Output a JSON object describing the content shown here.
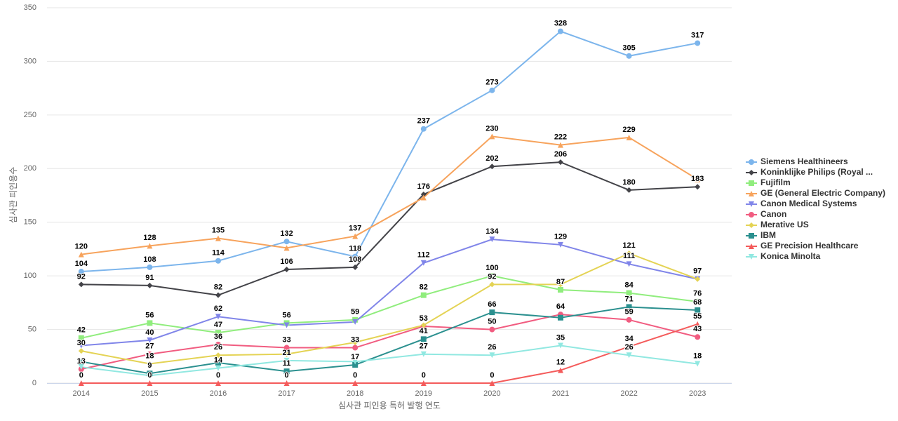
{
  "chart_data": {
    "type": "line",
    "x_label": "심사관 피인용 특허 발행 연도",
    "y_label": "심사관 피인용수",
    "categories": [
      "2014",
      "2015",
      "2016",
      "2017",
      "2018",
      "2019",
      "2020",
      "2021",
      "2022",
      "2023"
    ],
    "ylim": [
      0,
      350
    ],
    "yticks": [
      0,
      50,
      100,
      150,
      200,
      250,
      300,
      350
    ],
    "grid": true,
    "legend": "right",
    "series": [
      {
        "name": "Siemens Healthineers",
        "color": "#7cb5ec",
        "marker": "circle",
        "values": [
          104,
          108,
          114,
          132,
          118,
          237,
          273,
          328,
          305,
          317
        ],
        "value_labels": [
          "104",
          "108",
          "114",
          "132",
          "118",
          "237",
          "273",
          "328",
          "305",
          "317"
        ]
      },
      {
        "name": "Koninklijke Philips (Royal ...",
        "color": "#434348",
        "marker": "diamond",
        "values": [
          92,
          91,
          82,
          106,
          108,
          176,
          202,
          206,
          180,
          183
        ],
        "value_labels": [
          "92",
          "91",
          "82",
          "106",
          "108",
          "176",
          "202",
          "206",
          "180",
          "183"
        ]
      },
      {
        "name": "Fujifilm",
        "color": "#90ed7d",
        "marker": "square",
        "values": [
          42,
          56,
          47,
          56,
          59,
          82,
          100,
          87,
          84,
          76
        ],
        "value_labels": [
          "42",
          "56",
          "47",
          "56",
          "59",
          "82",
          "100",
          "87",
          "84",
          "76"
        ]
      },
      {
        "name": "GE (General Electric Company)",
        "color": "#f7a35c",
        "marker": "triangle",
        "values": [
          120,
          128,
          135,
          126,
          137,
          173,
          230,
          222,
          229,
          190
        ],
        "value_labels": [
          "120",
          "128",
          "135",
          null,
          "137",
          null,
          "230",
          "222",
          "229",
          null
        ]
      },
      {
        "name": "Canon Medical Systems",
        "color": "#8085e9",
        "marker": "triangle-down",
        "values": [
          35,
          40,
          62,
          54,
          57,
          112,
          134,
          129,
          111,
          97
        ],
        "value_labels": [
          null,
          "40",
          "62",
          null,
          null,
          "112",
          "134",
          "129",
          "111",
          null
        ]
      },
      {
        "name": "Canon",
        "color": "#f15c80",
        "marker": "circle",
        "values": [
          13,
          27,
          36,
          33,
          33,
          53,
          50,
          64,
          59,
          43
        ],
        "value_labels": [
          "13",
          "27",
          "36",
          "33",
          "33",
          "53",
          "50",
          "64",
          "59",
          "43"
        ]
      },
      {
        "name": "Merative US",
        "color": "#e4d354",
        "marker": "diamond",
        "values": [
          30,
          18,
          26,
          27,
          38,
          54,
          92,
          92,
          121,
          97
        ],
        "value_labels": [
          "30",
          "18",
          "26",
          null,
          null,
          null,
          "92",
          null,
          "121",
          "97"
        ]
      },
      {
        "name": "IBM",
        "color": "#2b908f",
        "marker": "square",
        "values": [
          20,
          9,
          19,
          11,
          17,
          41,
          66,
          61,
          71,
          68
        ],
        "value_labels": [
          null,
          "9",
          null,
          "11",
          "17",
          "41",
          "66",
          null,
          "71",
          "68"
        ]
      },
      {
        "name": "GE Precision Healthcare",
        "color": "#f45b5b",
        "marker": "triangle",
        "values": [
          0,
          0,
          0,
          0,
          0,
          0,
          0,
          12,
          34,
          55
        ],
        "value_labels": [
          "0",
          "0",
          "0",
          "0",
          "0",
          "0",
          "0",
          "12",
          "34",
          "55"
        ]
      },
      {
        "name": "Konica Minolta",
        "color": "#91e8e1",
        "marker": "triangle-down",
        "values": [
          15,
          7,
          14,
          21,
          20,
          27,
          26,
          35,
          26,
          18
        ],
        "value_labels": [
          null,
          null,
          "14",
          "21",
          null,
          "27",
          "26",
          "35",
          "26",
          "18"
        ]
      }
    ]
  }
}
